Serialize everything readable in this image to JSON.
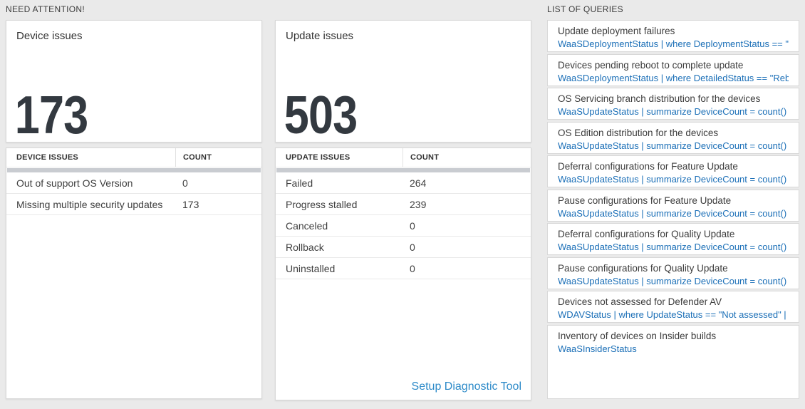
{
  "colors": {
    "page_background": "#eaeaea",
    "card_background": "#ffffff",
    "card_border": "#d8d8d8",
    "query_link_blue": "#1b6fb7",
    "setup_link_blue": "#2e8bc9",
    "big_number_color": "#333940",
    "table_bar_gray": "#c9ccd1",
    "text_dark": "#3c3c3c"
  },
  "sections": {
    "need_attention": "NEED ATTENTION!",
    "list_of_queries": "LIST OF QUERIES"
  },
  "device_card": {
    "title": "Device issues",
    "count": "173",
    "table": {
      "headers": [
        "DEVICE ISSUES",
        "COUNT"
      ],
      "rows": [
        {
          "label": "Out of support OS Version",
          "count": "0"
        },
        {
          "label": "Missing multiple security updates",
          "count": "173"
        }
      ]
    }
  },
  "update_card": {
    "title": "Update issues",
    "count": "503",
    "table": {
      "headers": [
        "UPDATE ISSUES",
        "COUNT"
      ],
      "rows": [
        {
          "label": "Failed",
          "count": "264"
        },
        {
          "label": "Progress stalled",
          "count": "239"
        },
        {
          "label": "Canceled",
          "count": "0"
        },
        {
          "label": "Rollback",
          "count": "0"
        },
        {
          "label": "Uninstalled",
          "count": "0"
        }
      ]
    },
    "setup_link": "Setup Diagnostic Tool"
  },
  "queries": [
    {
      "title": "Update deployment failures",
      "query": "WaaSDeploymentStatus | where DeploymentStatus == \"Failed\" |..."
    },
    {
      "title": "Devices pending reboot to complete update",
      "query": "WaaSDeploymentStatus | where DetailedStatus == \"Reboot pend..."
    },
    {
      "title": "OS Servicing branch distribution for the devices",
      "query": "WaaSUpdateStatus | summarize DeviceCount = count() by OSSer..."
    },
    {
      "title": "OS Edition distribution for the devices",
      "query": "WaaSUpdateStatus | summarize DeviceCount = count() by OSEdit..."
    },
    {
      "title": "Deferral configurations for Feature Update",
      "query": "WaaSUpdateStatus | summarize DeviceCount = count() by Featur..."
    },
    {
      "title": "Pause configurations for Feature Update",
      "query": "WaaSUpdateStatus | summarize DeviceCount = count() by Featur..."
    },
    {
      "title": "Deferral configurations for Quality Update",
      "query": "WaaSUpdateStatus | summarize DeviceCount = count() by Qualit..."
    },
    {
      "title": "Pause configurations for Quality Update",
      "query": "WaaSUpdateStatus | summarize DeviceCount = count() by Qualit..."
    },
    {
      "title": "Devices not assessed for Defender AV",
      "query": "WDAVStatus | where UpdateStatus == \"Not assessed\" | render ta..."
    },
    {
      "title": "Inventory of devices on Insider builds",
      "query": "WaaSInsiderStatus"
    }
  ]
}
